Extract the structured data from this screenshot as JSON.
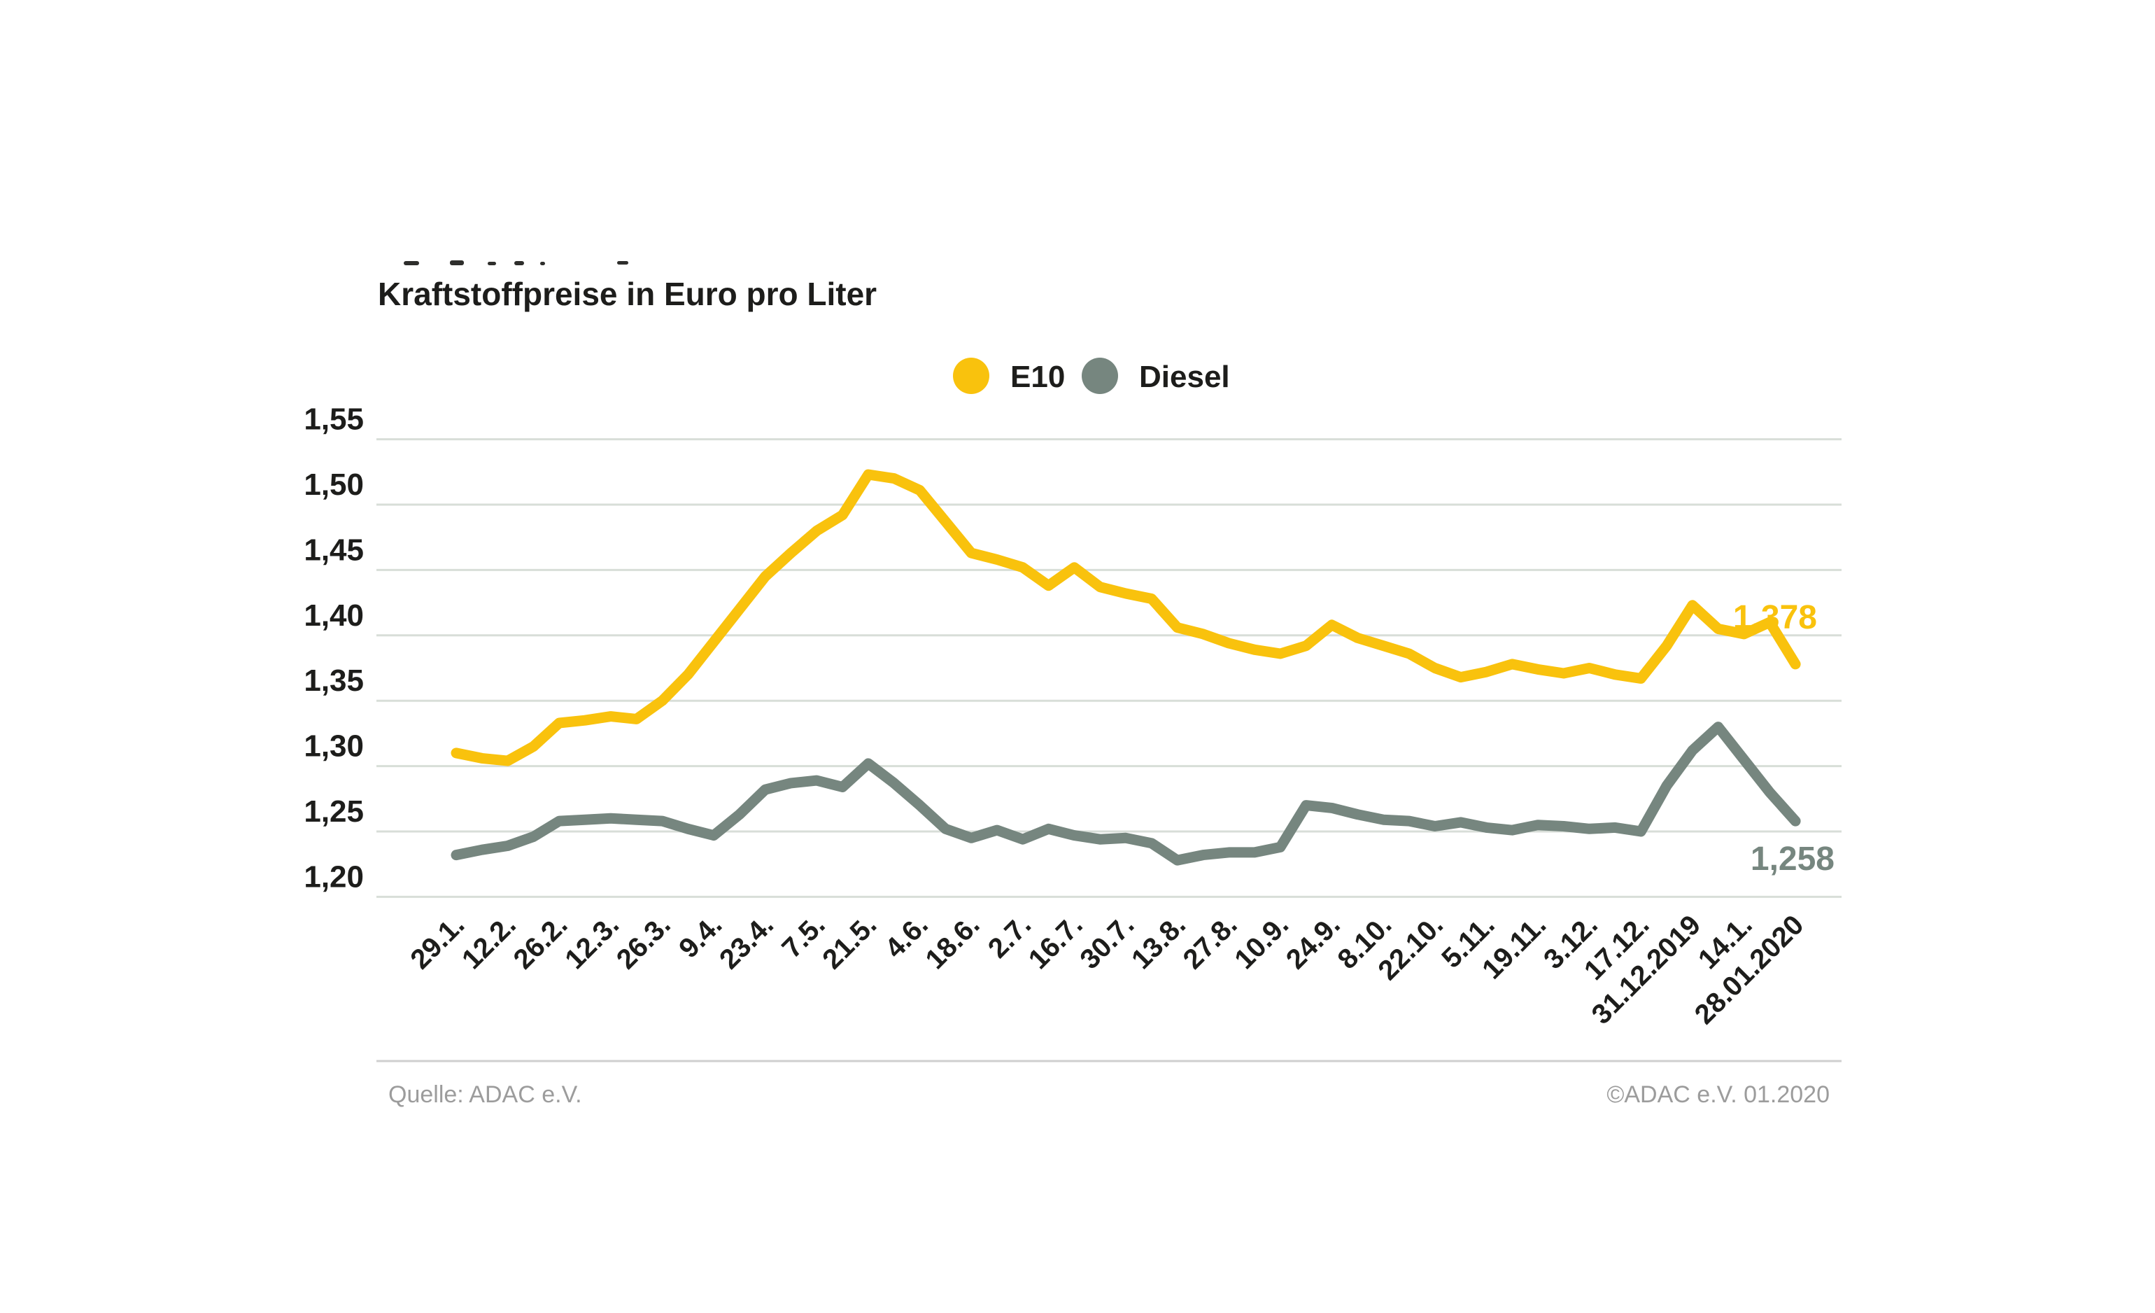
{
  "header": {
    "title": "Kraftstoffpreise in Euro pro Liter"
  },
  "legend": {
    "items": [
      {
        "label": "E10",
        "color": "#F9C20D"
      },
      {
        "label": "Diesel",
        "color": "#76867F"
      }
    ]
  },
  "footer": {
    "source": "Quelle: ADAC e.V.",
    "copyright": "©ADAC e.V.  01.2020"
  },
  "chart_data": {
    "type": "line",
    "title": "Kraftstoffpreise in Euro pro Liter",
    "ylabel": "Euro pro Liter",
    "ylim": [
      1.2,
      1.55
    ],
    "grid": true,
    "legend_position": "top-center",
    "points_per_tick": 2,
    "y_ticks": [
      {
        "label": "1,55",
        "value": 1.55
      },
      {
        "label": "1,50",
        "value": 1.5
      },
      {
        "label": "1,45",
        "value": 1.45
      },
      {
        "label": "1,40",
        "value": 1.4
      },
      {
        "label": "1,35",
        "value": 1.35
      },
      {
        "label": "1,30",
        "value": 1.3
      },
      {
        "label": "1,25",
        "value": 1.25
      },
      {
        "label": "1,20",
        "value": 1.2
      }
    ],
    "x_tick_labels": [
      "29.1.",
      "12.2.",
      "26.2.",
      "12.3.",
      "26.3.",
      "9.4.",
      "23.4.",
      "7.5.",
      "21.5.",
      "4.6.",
      "18.6.",
      "2.7.",
      "16.7.",
      "30.7.",
      "13.8.",
      "27.8.",
      "10.9.",
      "24.9.",
      "8.10.",
      "22.10.",
      "5.11.",
      "19.11.",
      "3.12.",
      "17.12.",
      "31.12.2019",
      "14.1.",
      "28.01.2020"
    ],
    "series": [
      {
        "name": "E10",
        "color": "#F9C20D",
        "end_label": "1,378",
        "values": [
          1.31,
          1.306,
          1.304,
          1.315,
          1.333,
          1.335,
          1.338,
          1.336,
          1.35,
          1.37,
          1.395,
          1.42,
          1.445,
          1.463,
          1.48,
          1.492,
          1.523,
          1.52,
          1.511,
          1.487,
          1.463,
          1.458,
          1.452,
          1.438,
          1.452,
          1.437,
          1.432,
          1.428,
          1.406,
          1.401,
          1.394,
          1.389,
          1.386,
          1.392,
          1.408,
          1.398,
          1.392,
          1.386,
          1.375,
          1.368,
          1.372,
          1.378,
          1.374,
          1.371,
          1.375,
          1.37,
          1.367,
          1.392,
          1.423,
          1.405,
          1.401,
          1.41,
          1.378
        ]
      },
      {
        "name": "Diesel",
        "color": "#76867F",
        "end_label": "1,258",
        "values": [
          1.232,
          1.236,
          1.239,
          1.246,
          1.258,
          1.259,
          1.26,
          1.259,
          1.258,
          1.252,
          1.247,
          1.263,
          1.282,
          1.287,
          1.289,
          1.284,
          1.302,
          1.287,
          1.27,
          1.252,
          1.245,
          1.251,
          1.244,
          1.252,
          1.247,
          1.244,
          1.245,
          1.241,
          1.228,
          1.232,
          1.234,
          1.234,
          1.238,
          1.27,
          1.268,
          1.263,
          1.259,
          1.258,
          1.254,
          1.257,
          1.253,
          1.251,
          1.255,
          1.254,
          1.252,
          1.253,
          1.25,
          1.285,
          1.312,
          1.33,
          1.305,
          1.28,
          1.258
        ]
      }
    ]
  }
}
